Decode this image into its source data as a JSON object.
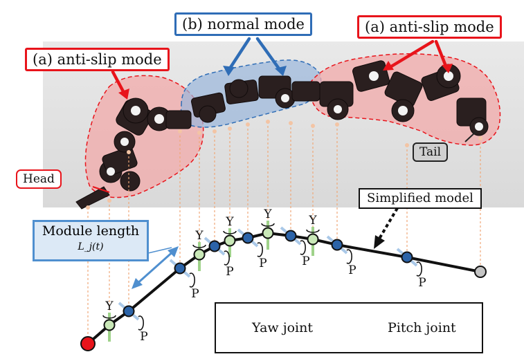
{
  "callouts": {
    "normal_mode": "(b) normal mode",
    "anti_slip_right": "(a) anti-slip mode",
    "anti_slip_left": "(a) anti-slip mode"
  },
  "labels": {
    "head": "Head",
    "tail": "Tail",
    "simplified_model": "Simplified model",
    "module_length": "Module length",
    "module_length_symbol": "L_j(t)",
    "yaw": "Y",
    "pitch": "P"
  },
  "legend": {
    "yaw_joint": "Yaw joint",
    "pitch_joint": "Pitch joint"
  },
  "colors": {
    "anti_slip_region": "#f2a9a9",
    "normal_region": "#9ab6dc",
    "callout_red": "#e8141b",
    "callout_blue": "#2f6db6",
    "yaw_joint_fill": "#c9e8b8",
    "pitch_joint_fill": "#2b63a8",
    "head_fill": "#e8141b",
    "tail_fill": "#c4c4c4",
    "guide_line": "#f0a878"
  }
}
